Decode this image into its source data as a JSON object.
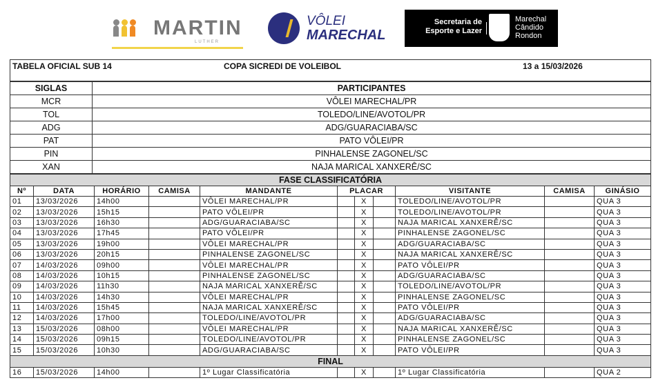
{
  "logos": {
    "martin": "MARTIN",
    "martin_sub": "LUTHER",
    "volei_1": "VÔLEI",
    "volei_2": "MARECHAL",
    "secretaria": "Secretaria de Esporte e Lazer",
    "prefeitura": "Marechal Cândido Rondon",
    "colors": {
      "martin_yellow": "#f1d44a",
      "volei_blue": "#2b2f7e",
      "volei_gold": "#e9b92c"
    }
  },
  "header": {
    "left": "TABELA OFICIAL SUB 14",
    "center": "COPA SICREDI DE VOLEIBOL",
    "right": "13 a 15/03/2026"
  },
  "participants": {
    "col_siglas": "SIGLAS",
    "col_participantes": "PARTICIPANTES",
    "rows": [
      [
        "MCR",
        "VÔLEI MARECHAL/PR"
      ],
      [
        "TOL",
        "TOLEDO/LINE/AVOTOL/PR"
      ],
      [
        "ADG",
        "ADG/GUARACIABA/SC"
      ],
      [
        "PAT",
        "PATO VÔLEI/PR"
      ],
      [
        "PIN",
        "PINHALENSE ZAGONEL/SC"
      ],
      [
        "XAN",
        "NAJA MARICAL XANXERÊ/SC"
      ]
    ]
  },
  "phase1": "FASE CLASSIFICATÓRIA",
  "columns": [
    "Nº",
    "DATA",
    "HORÁRIO",
    "CAMISA",
    "MANDANTE",
    "PLACAR",
    "VISITANTE",
    "CAMISA",
    "GINÁSIO"
  ],
  "matches": [
    [
      "01",
      "13/03/2026",
      "14h00",
      "VÔLEI MARECHAL/PR",
      "TOLEDO/LINE/AVOTOL/PR",
      "QUA 3"
    ],
    [
      "02",
      "13/03/2026",
      "15h15",
      "PATO VÔLEI/PR",
      "TOLEDO/LINE/AVOTOL/PR",
      "QUA 3"
    ],
    [
      "03",
      "13/03/2026",
      "16h30",
      "ADG/GUARACIABA/SC",
      "NAJA MARICAL XANXERÊ/SC",
      "QUA 3"
    ],
    [
      "04",
      "13/03/2026",
      "17h45",
      "PATO VÔLEI/PR",
      "PINHALENSE ZAGONEL/SC",
      "QUA 3"
    ],
    [
      "05",
      "13/03/2026",
      "19h00",
      "VÔLEI MARECHAL/PR",
      "ADG/GUARACIABA/SC",
      "QUA 3"
    ],
    [
      "06",
      "13/03/2026",
      "20h15",
      "PINHALENSE ZAGONEL/SC",
      "NAJA MARICAL XANXERÊ/SC",
      "QUA 3"
    ],
    [
      "07",
      "14/03/2026",
      "09h00",
      "VÔLEI MARECHAL/PR",
      "PATO VÔLEI/PR",
      "QUA 3"
    ],
    [
      "08",
      "14/03/2026",
      "10h15",
      "PINHALENSE ZAGONEL/SC",
      "ADG/GUARACIABA/SC",
      "QUA 3"
    ],
    [
      "09",
      "14/03/2026",
      "11h30",
      "NAJA MARICAL XANXERÊ/SC",
      "TOLEDO/LINE/AVOTOL/PR",
      "QUA 3"
    ],
    [
      "10",
      "14/03/2026",
      "14h30",
      "VÔLEI MARECHAL/PR",
      "PINHALENSE ZAGONEL/SC",
      "QUA 3"
    ],
    [
      "11",
      "14/03/2026",
      "15h45",
      "NAJA MARICAL XANXERÊ/SC",
      "PATO VÔLEI/PR",
      "QUA 3"
    ],
    [
      "12",
      "14/03/2026",
      "17h00",
      "TOLEDO/LINE/AVOTOL/PR",
      "ADG/GUARACIABA/SC",
      "QUA 3"
    ],
    [
      "13",
      "15/03/2026",
      "08h00",
      "VÔLEI MARECHAL/PR",
      "NAJA MARICAL XANXERÊ/SC",
      "QUA 3"
    ],
    [
      "14",
      "15/03/2026",
      "09h15",
      "TOLEDO/LINE/AVOTOL/PR",
      "PINHALENSE ZAGONEL/SC",
      "QUA 3"
    ],
    [
      "15",
      "15/03/2026",
      "10h30",
      "ADG/GUARACIABA/SC",
      "PATO VÔLEI/PR",
      "QUA 3"
    ]
  ],
  "phase2": "FINAL",
  "final": [
    [
      "16",
      "15/03/2026",
      "14h00",
      "1º Lugar Classificatória",
      "1º Lugar Classificatória",
      "QUA 2"
    ]
  ],
  "placar_x": "X"
}
